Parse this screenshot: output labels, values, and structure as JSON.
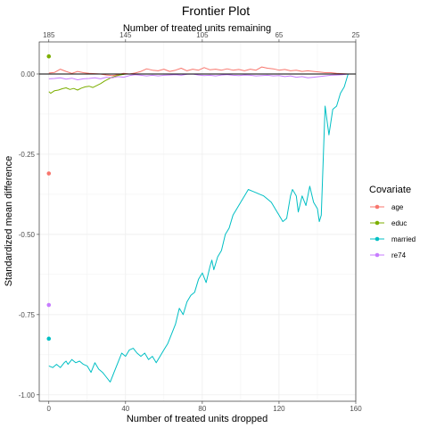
{
  "chart_data": {
    "type": "line",
    "title": "Frontier Plot",
    "xlabel": "Number of treated units dropped",
    "ylabel": "Standardized mean difference",
    "x2label": "Number of treated units remaining",
    "xlim": [
      -5,
      160
    ],
    "ylim": [
      -1.02,
      0.1
    ],
    "x_ticks": [
      0,
      40,
      80,
      120,
      160
    ],
    "x_tick_labels": [
      "0",
      "40",
      "80",
      "120",
      "160"
    ],
    "x2_ticks": [
      0,
      40,
      80,
      120,
      160
    ],
    "x2_tick_labels": [
      "185",
      "145",
      "105",
      "65",
      "25"
    ],
    "y_ticks": [
      0,
      -0.25,
      -0.5,
      -0.75,
      -1.0
    ],
    "y_tick_labels": [
      "0.00",
      "-0.25",
      "-0.50",
      "-0.75",
      "-1.00"
    ],
    "grid": true,
    "zero_line": true,
    "legend": {
      "title": "Covariate",
      "placement": "right"
    },
    "series": [
      {
        "name": "age",
        "color": "#F8766D",
        "x": [
          0,
          3,
          6,
          9,
          12,
          15,
          18,
          21,
          24,
          27,
          30,
          33,
          36,
          39,
          42,
          45,
          48,
          51,
          54,
          57,
          60,
          63,
          66,
          69,
          72,
          75,
          78,
          81,
          84,
          87,
          90,
          93,
          96,
          99,
          102,
          105,
          108,
          111,
          114,
          117,
          120,
          123,
          126,
          129,
          132,
          135,
          138,
          141,
          144,
          147,
          150,
          153,
          156
        ],
        "y": [
          0.003,
          0.005,
          0.015,
          0.008,
          0.002,
          0.008,
          0.004,
          0.002,
          0.001,
          0.0,
          -0.003,
          -0.005,
          -0.002,
          0.002,
          0.0,
          0.003,
          0.008,
          0.016,
          0.012,
          0.01,
          0.015,
          0.008,
          0.012,
          0.018,
          0.01,
          0.015,
          0.012,
          0.02,
          0.013,
          0.015,
          0.012,
          0.016,
          0.012,
          0.014,
          0.01,
          0.015,
          0.012,
          0.022,
          0.018,
          0.016,
          0.012,
          0.014,
          0.01,
          0.012,
          0.008,
          0.01,
          0.008,
          0.006,
          0.004,
          0.004,
          0.002,
          0.001,
          0.0
        ],
        "isolated_point": {
          "x": 0,
          "y": -0.31
        }
      },
      {
        "name": "educ",
        "color": "#7CAE00",
        "x": [
          0,
          1,
          3,
          5,
          7,
          9,
          11,
          13,
          15,
          17,
          19,
          21,
          23,
          25,
          27,
          29,
          31,
          33,
          35,
          37,
          40,
          45,
          60,
          80,
          100,
          120,
          140,
          156
        ],
        "y": [
          -0.055,
          -0.06,
          -0.052,
          -0.05,
          -0.046,
          -0.043,
          -0.048,
          -0.045,
          -0.05,
          -0.044,
          -0.04,
          -0.038,
          -0.042,
          -0.036,
          -0.03,
          -0.022,
          -0.016,
          -0.01,
          -0.006,
          -0.003,
          0.0,
          0.0,
          0.0,
          0.0,
          0.0,
          0.0,
          0.0,
          0.0
        ],
        "isolated_point": {
          "x": 0,
          "y": 0.055
        }
      },
      {
        "name": "married",
        "color": "#00BFC4",
        "x": [
          0,
          2,
          4,
          6,
          8,
          9,
          10,
          12,
          14,
          16,
          18,
          20,
          22,
          24,
          26,
          28,
          30,
          32,
          34,
          36,
          38,
          40,
          42,
          44,
          46,
          48,
          50,
          52,
          54,
          56,
          58,
          60,
          62,
          64,
          66,
          68,
          70,
          72,
          74,
          76,
          78,
          80,
          82,
          84,
          85,
          86,
          88,
          90,
          92,
          94,
          96,
          98,
          100,
          102,
          104,
          106,
          108,
          110,
          112,
          114,
          116,
          118,
          120,
          122,
          124,
          126,
          127,
          128,
          129,
          130,
          132,
          134,
          136,
          138,
          140,
          141,
          142,
          144,
          146,
          148,
          150,
          152,
          154,
          156
        ],
        "y": [
          -0.91,
          -0.915,
          -0.905,
          -0.915,
          -0.9,
          -0.895,
          -0.905,
          -0.89,
          -0.9,
          -0.895,
          -0.905,
          -0.91,
          -0.93,
          -0.9,
          -0.92,
          -0.93,
          -0.945,
          -0.96,
          -0.93,
          -0.9,
          -0.87,
          -0.88,
          -0.86,
          -0.855,
          -0.87,
          -0.88,
          -0.87,
          -0.89,
          -0.88,
          -0.9,
          -0.88,
          -0.86,
          -0.84,
          -0.81,
          -0.78,
          -0.73,
          -0.75,
          -0.71,
          -0.69,
          -0.68,
          -0.64,
          -0.62,
          -0.65,
          -0.6,
          -0.58,
          -0.61,
          -0.57,
          -0.55,
          -0.5,
          -0.48,
          -0.44,
          -0.42,
          -0.4,
          -0.38,
          -0.36,
          -0.365,
          -0.37,
          -0.375,
          -0.38,
          -0.39,
          -0.4,
          -0.42,
          -0.44,
          -0.46,
          -0.45,
          -0.38,
          -0.36,
          -0.37,
          -0.38,
          -0.43,
          -0.38,
          -0.41,
          -0.35,
          -0.4,
          -0.42,
          -0.46,
          -0.44,
          -0.1,
          -0.19,
          -0.11,
          -0.1,
          -0.06,
          -0.04,
          0.0
        ],
        "isolated_point": {
          "x": 0,
          "y": -0.825
        }
      },
      {
        "name": "re74",
        "color": "#C77CFF",
        "x": [
          0,
          3,
          6,
          9,
          12,
          15,
          18,
          21,
          24,
          27,
          30,
          33,
          36,
          39,
          42,
          45,
          48,
          51,
          54,
          57,
          60,
          63,
          66,
          69,
          72,
          75,
          78,
          81,
          84,
          87,
          90,
          93,
          96,
          99,
          102,
          105,
          108,
          111,
          114,
          117,
          120,
          123,
          126,
          129,
          132,
          135,
          138,
          141,
          144,
          147,
          150,
          153,
          156
        ],
        "y": [
          -0.015,
          -0.014,
          -0.012,
          -0.016,
          -0.013,
          -0.018,
          -0.015,
          -0.014,
          -0.012,
          -0.015,
          -0.01,
          -0.012,
          -0.008,
          -0.01,
          -0.005,
          -0.002,
          -0.004,
          -0.006,
          -0.004,
          -0.006,
          -0.004,
          -0.003,
          -0.002,
          -0.004,
          -0.001,
          0.0,
          -0.003,
          -0.005,
          -0.004,
          -0.006,
          -0.003,
          -0.002,
          -0.004,
          -0.005,
          -0.003,
          -0.004,
          -0.006,
          -0.005,
          -0.004,
          -0.006,
          -0.005,
          -0.008,
          -0.006,
          -0.01,
          -0.008,
          -0.012,
          -0.01,
          -0.008,
          -0.006,
          -0.004,
          -0.003,
          -0.002,
          0.0
        ],
        "isolated_point": {
          "x": 0,
          "y": -0.72
        }
      }
    ]
  }
}
